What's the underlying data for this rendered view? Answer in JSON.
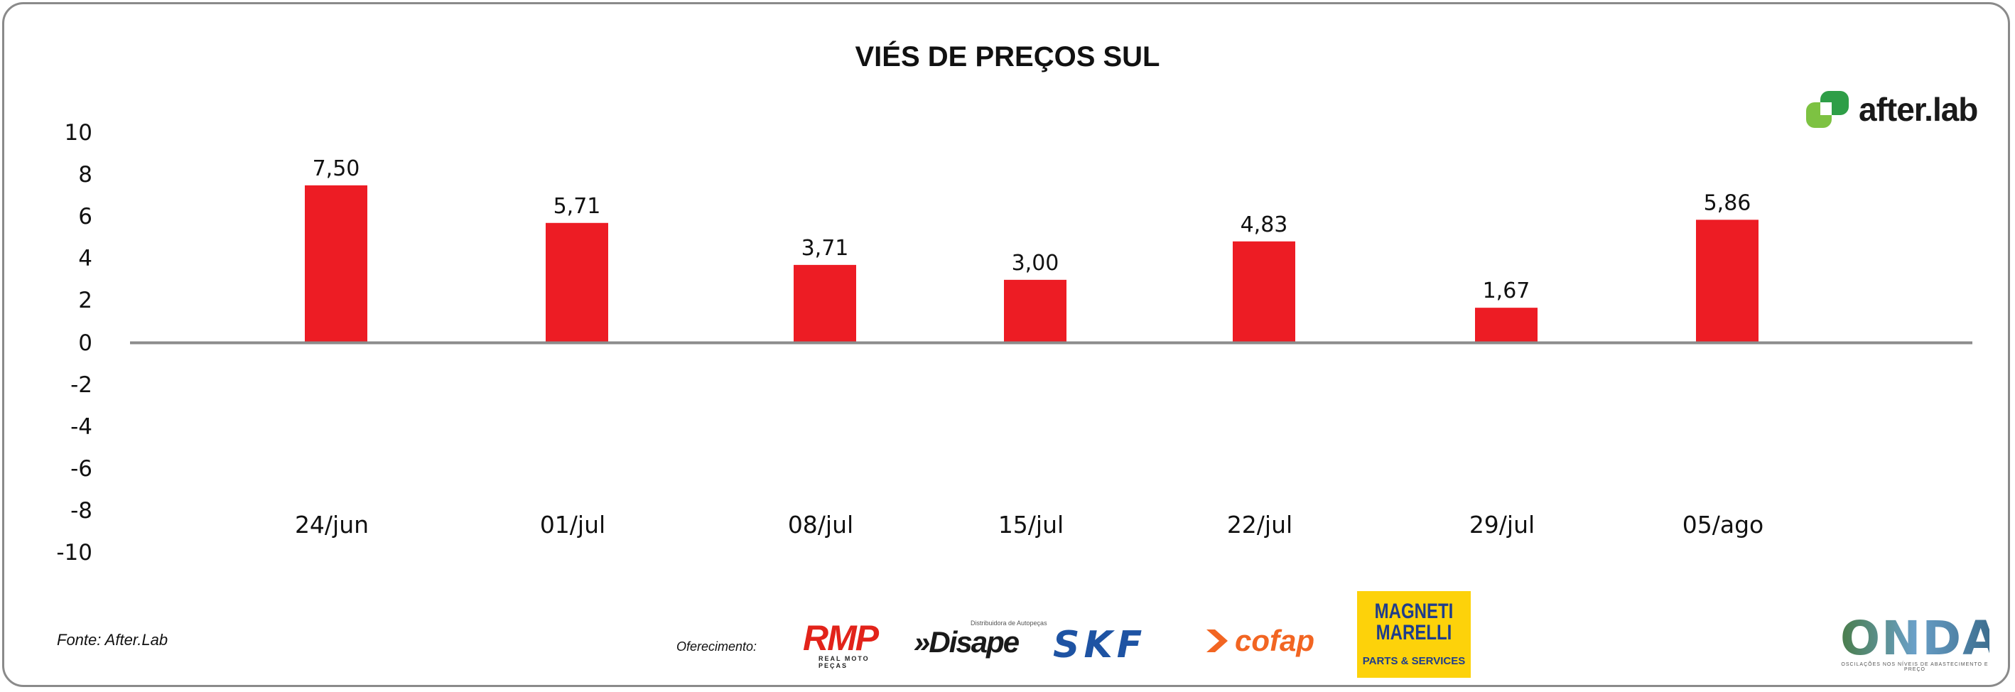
{
  "chart_data": {
    "type": "bar",
    "title": "VIÉS DE PREÇOS SUL",
    "categories": [
      "24/jun",
      "01/jul",
      "08/jul",
      "15/jul",
      "22/jul",
      "29/jul",
      "05/ago"
    ],
    "values": [
      7.5,
      5.71,
      3.71,
      3.0,
      4.83,
      1.67,
      5.86
    ],
    "value_labels": [
      "7,50",
      "5,71",
      "3,71",
      "3,00",
      "4,83",
      "1,67",
      "5,86"
    ],
    "ylim": [
      -10,
      10
    ],
    "yticks": [
      "10",
      "8",
      "6",
      "4",
      "2",
      "0",
      "-2",
      "-4",
      "-6",
      "-8",
      "-10"
    ],
    "grid": false,
    "bar_color": "#ed1c24",
    "axis_color": "#8c8c8c"
  },
  "footer": {
    "source": "Fonte: After.Lab",
    "sponsor_label": "Oferecimento:"
  },
  "logos": {
    "afterlab": "after.lab",
    "rmp": "RMP",
    "rmp_sub": "REAL MOTO PEÇAS",
    "disape_small": "Distribuidora de Autopeças",
    "disape": "»Disape",
    "skf": "SKF",
    "cofap": "cofap",
    "magneti_brand": "MAGNETI MARELLI",
    "magneti_sub": "PARTS & SERVICES",
    "onda": "ONDA",
    "onda_sub": "OSCILAÇÕES NOS NÍVEIS DE ABASTECIMENTO E PREÇO"
  }
}
